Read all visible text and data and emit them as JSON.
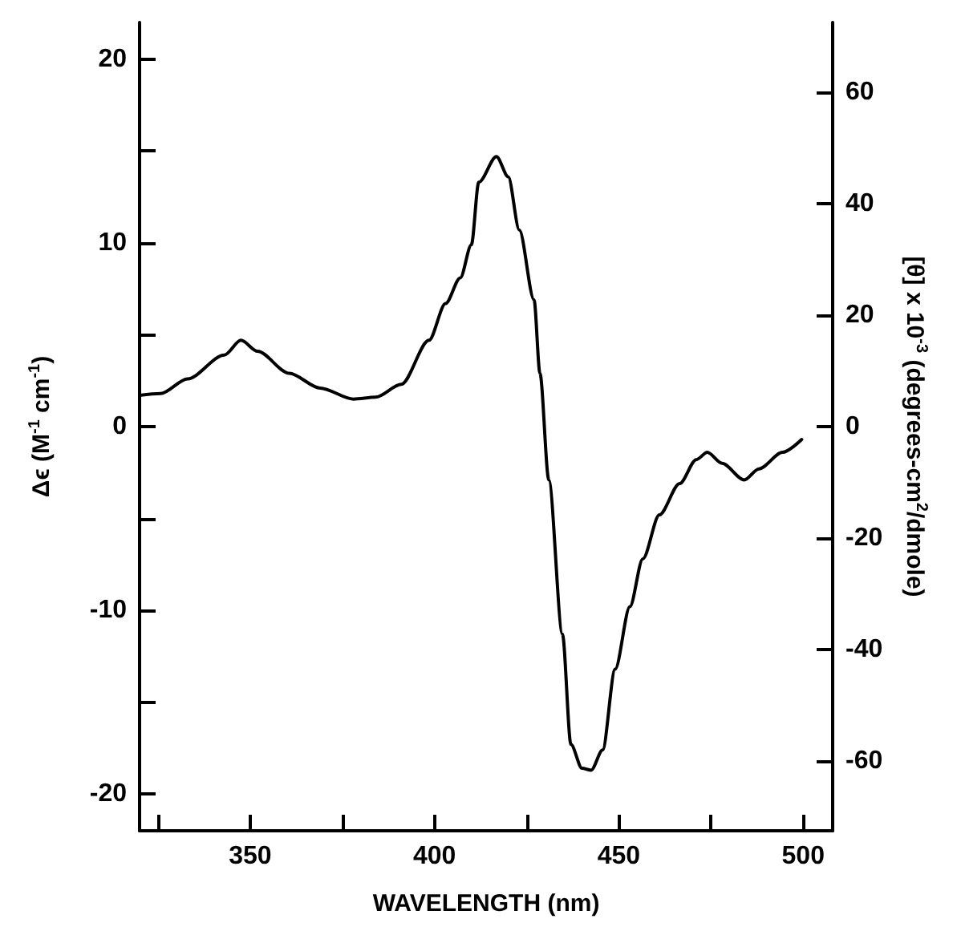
{
  "chart_data": {
    "type": "line",
    "xlabel": "WAVELENGTH (nm)",
    "ylabel": "Δϵ (M$^{-1}$ cm$^{-1}$)",
    "y2label": "[θ] x 10$^{-3}$ (degrees-cm$^{2}$/dmole)",
    "xlim": [
      320,
      508
    ],
    "xticks": [
      {
        "value": 325,
        "label": null
      },
      350,
      {
        "value": 375,
        "label": null
      },
      400,
      {
        "value": 425,
        "label": null
      },
      450,
      {
        "value": 475,
        "label": null
      },
      500
    ],
    "ylim": [
      -22,
      22
    ],
    "yticks": [
      -20,
      {
        "value": -15,
        "label": null
      },
      -10,
      {
        "value": -5,
        "label": null
      },
      0,
      {
        "value": 5,
        "label": null
      },
      10,
      {
        "value": 15,
        "label": null
      },
      20
    ],
    "y2lim": [
      -72.6,
      72.6
    ],
    "y2ticks": [
      -60,
      -40,
      -20,
      0,
      20,
      40,
      60
    ],
    "grid": false,
    "marker": "none",
    "line_style": "solid",
    "series": [
      {
        "color": "#000000",
        "x": [
          320,
          325.7,
          333,
          343,
          347.5,
          352,
          360.6,
          369,
          378,
          384,
          391,
          398.5,
          403,
          407,
          410,
          412,
          416.8,
          420,
          423,
          427,
          428.6,
          431,
          434.7,
          437,
          440,
          442.5,
          445.6,
          449,
          453,
          456.5,
          461,
          466.5,
          471,
          474,
          478,
          484,
          488,
          494.4,
          499.6
        ],
        "values": [
          1.7,
          1.8,
          2.6,
          3.9,
          4.7,
          4.1,
          2.9,
          2.1,
          1.5,
          1.6,
          2.3,
          4.7,
          6.7,
          8.1,
          9.9,
          13.3,
          14.7,
          13.6,
          10.7,
          6.9,
          2.9,
          -2.9,
          -11.3,
          -17.3,
          -18.6,
          -18.7,
          -17.6,
          -13.2,
          -9.8,
          -7.2,
          -4.8,
          -3.1,
          -1.8,
          -1.4,
          -2.0,
          -2.9,
          -2.3,
          -1.4,
          -0.7
        ]
      }
    ]
  }
}
